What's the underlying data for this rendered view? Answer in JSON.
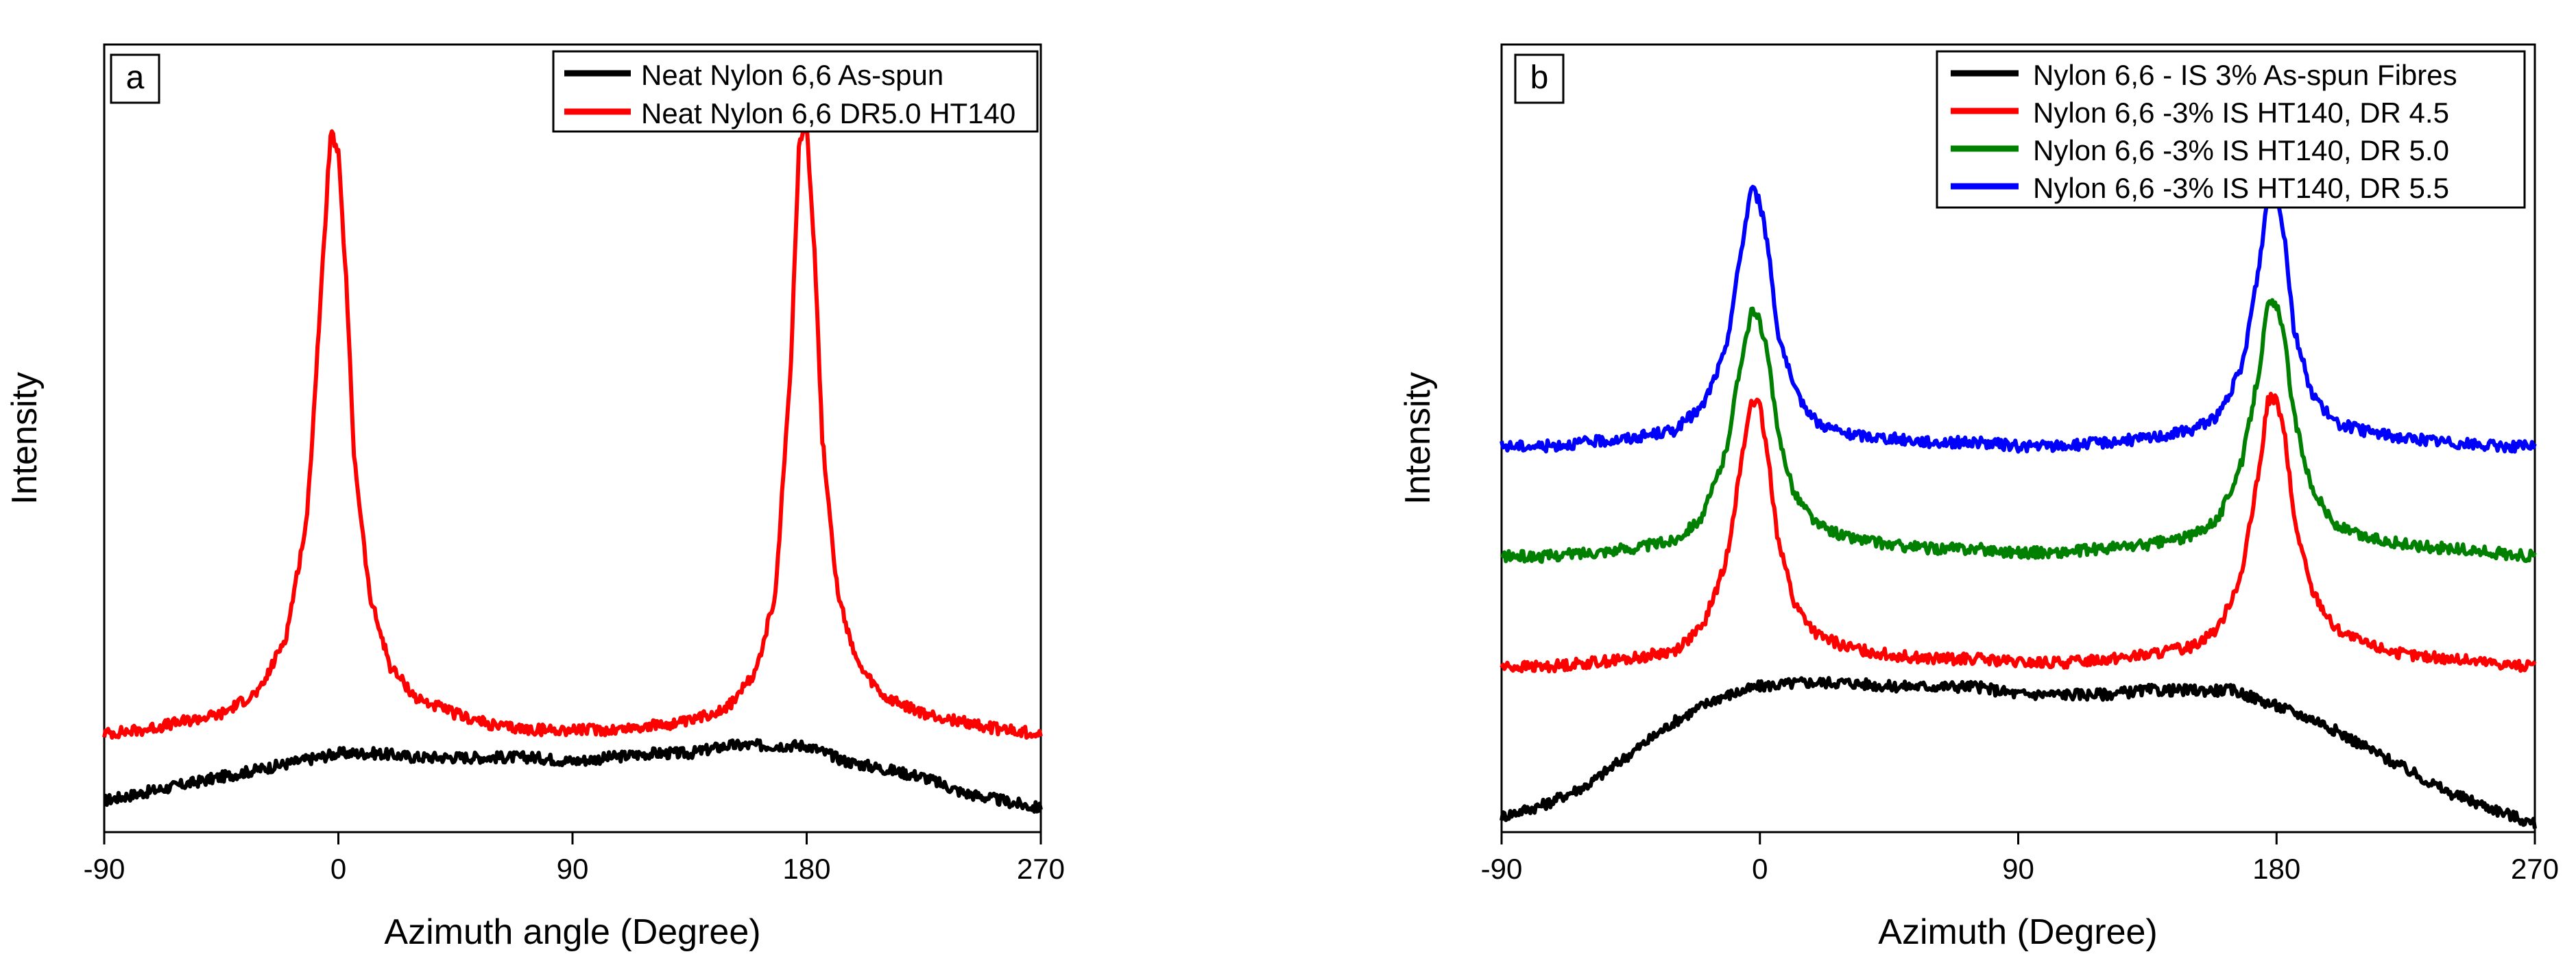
{
  "chart_data": [
    {
      "type": "line",
      "panel_label": "a",
      "xlabel": "Azimuth angle (Degree)",
      "ylabel": "Intensity",
      "xlim": [
        -90,
        270
      ],
      "xticks": [
        "-90",
        "0",
        "90",
        "180",
        "270"
      ],
      "yticks_shown": false,
      "ylim": [
        0,
        100
      ],
      "legend_position": "top-right",
      "series": [
        {
          "name": "Neat Nylon 6,6 As-spun",
          "color": "#000000",
          "x": [
            -90,
            -75,
            -60,
            -45,
            -30,
            -15,
            0,
            15,
            30,
            45,
            60,
            75,
            90,
            105,
            120,
            135,
            150,
            165,
            180,
            195,
            210,
            225,
            240,
            255,
            270
          ],
          "y": [
            4,
            5,
            6,
            7,
            8,
            9,
            10,
            10,
            9.5,
            9.5,
            9.5,
            9.5,
            9,
            9.5,
            10,
            10,
            11,
            11,
            11,
            9,
            8,
            7,
            5,
            4,
            3
          ]
        },
        {
          "name": "Neat Nylon 6,6 DR5.0 HT140",
          "color": "#ff0000",
          "x": [
            -90,
            -75,
            -60,
            -45,
            -30,
            -20,
            -12,
            -6,
            -3,
            0,
            3,
            6,
            12,
            20,
            30,
            45,
            60,
            75,
            90,
            105,
            120,
            135,
            150,
            160,
            168,
            174,
            177,
            180,
            183,
            186,
            192,
            200,
            210,
            225,
            240,
            255,
            270
          ],
          "y": [
            12.5,
            13,
            14,
            15,
            18,
            25,
            40,
            72,
            89,
            86,
            70,
            48,
            30,
            21,
            17,
            15,
            13.5,
            13,
            13,
            13,
            13.5,
            14,
            16,
            20,
            30,
            60,
            87,
            90,
            74,
            50,
            30,
            21,
            17,
            15,
            14,
            13,
            12.5
          ]
        }
      ]
    },
    {
      "type": "line",
      "panel_label": "b",
      "xlabel": "Azimuth (Degree)",
      "ylabel": "Intensity",
      "xlim": [
        -90,
        270
      ],
      "xticks": [
        "-90",
        "0",
        "90",
        "180",
        "270"
      ],
      "yticks_shown": false,
      "ylim": [
        0,
        100
      ],
      "legend_position": "top-right",
      "series": [
        {
          "name": "Nylon 6,6 - IS 3% As-spun Fibres",
          "color": "#000000",
          "x": [
            -90,
            -75,
            -60,
            -45,
            -30,
            -15,
            0,
            15,
            30,
            45,
            60,
            75,
            90,
            105,
            120,
            135,
            150,
            165,
            180,
            195,
            210,
            225,
            240,
            255,
            270
          ],
          "y": [
            2,
            3.5,
            6,
            10,
            14,
            17,
            18.5,
            19,
            19,
            18.5,
            18.5,
            18.5,
            17.5,
            17.5,
            17.5,
            18,
            18,
            18,
            16,
            14,
            11,
            8,
            5,
            3,
            1
          ]
        },
        {
          "name": "Nylon 6,6 -3% IS HT140, DR 4.5",
          "color": "#ff0000",
          "x": [
            -90,
            -75,
            -60,
            -45,
            -30,
            -20,
            -12,
            -6,
            -3,
            0,
            3,
            6,
            12,
            20,
            30,
            45,
            60,
            75,
            90,
            105,
            120,
            135,
            150,
            160,
            168,
            174,
            177,
            180,
            183,
            186,
            192,
            200,
            210,
            225,
            240,
            255,
            270
          ],
          "y": [
            21,
            21,
            21.5,
            22,
            23,
            26,
            34,
            48,
            55,
            54,
            47,
            38,
            29,
            25,
            23.5,
            22.5,
            22,
            22,
            21.5,
            21.5,
            22,
            22.5,
            23.5,
            26,
            33,
            46,
            55,
            55,
            50,
            40,
            31,
            26,
            24,
            22.5,
            22,
            21.5,
            21
          ]
        },
        {
          "name": "Nylon 6,6 -3% IS HT140, DR 5.0",
          "color": "#008000",
          "x": [
            -90,
            -75,
            -60,
            -45,
            -30,
            -20,
            -12,
            -6,
            -3,
            0,
            3,
            6,
            12,
            20,
            30,
            45,
            60,
            75,
            90,
            105,
            120,
            135,
            150,
            160,
            168,
            174,
            177,
            180,
            183,
            186,
            192,
            200,
            210,
            225,
            240,
            255,
            270
          ],
          "y": [
            35,
            35,
            35.5,
            36,
            37,
            40,
            48,
            61,
            66,
            65,
            60,
            51,
            43,
            39,
            37.5,
            36.5,
            36,
            36,
            35.5,
            35.5,
            36,
            36.5,
            37.5,
            40,
            47,
            59,
            67,
            67,
            62,
            53,
            44,
            39,
            37.5,
            36.5,
            36,
            35.5,
            35
          ]
        },
        {
          "name": "Nylon 6,6 -3% IS HT140, DR 5.5",
          "color": "#0000ff",
          "x": [
            -90,
            -75,
            -60,
            -45,
            -30,
            -20,
            -12,
            -6,
            -3,
            0,
            3,
            6,
            12,
            20,
            30,
            45,
            60,
            75,
            90,
            105,
            120,
            135,
            150,
            160,
            168,
            174,
            177,
            180,
            183,
            186,
            192,
            200,
            210,
            225,
            240,
            255,
            270
          ],
          "y": [
            49,
            49,
            49.5,
            50,
            51,
            54,
            61,
            75,
            82,
            80,
            74,
            64,
            56,
            52,
            50.5,
            50,
            49.5,
            49.5,
            49,
            49,
            49.5,
            50,
            51,
            53,
            59,
            72,
            81,
            82,
            75,
            64,
            56,
            52,
            51,
            50,
            49.5,
            49,
            49
          ]
        }
      ]
    }
  ]
}
